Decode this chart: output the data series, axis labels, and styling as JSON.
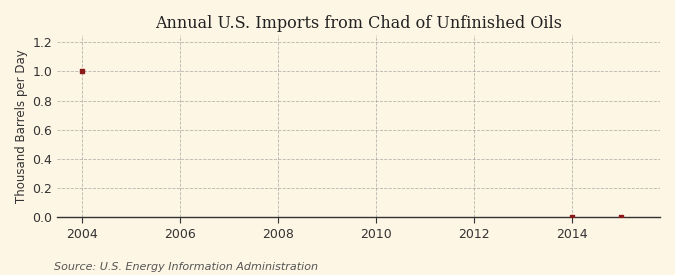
{
  "title": "Annual U.S. Imports from Chad of Unfinished Oils",
  "ylabel": "Thousand Barrels per Day",
  "source": "Source: U.S. Energy Information Administration",
  "x_data": [
    2004,
    2014,
    2015
  ],
  "y_data": [
    1.0,
    0.0,
    0.0
  ],
  "xlim": [
    2003.5,
    2015.8
  ],
  "ylim": [
    0.0,
    1.25
  ],
  "yticks": [
    0.0,
    0.2,
    0.4,
    0.6,
    0.8,
    1.0,
    1.2
  ],
  "xticks": [
    2004,
    2006,
    2008,
    2010,
    2012,
    2014
  ],
  "marker_color": "#8B1A1A",
  "background_color": "#FEF6E4",
  "grid_color": "#999999",
  "title_fontsize": 11.5,
  "label_fontsize": 8.5,
  "tick_fontsize": 9,
  "source_fontsize": 8
}
